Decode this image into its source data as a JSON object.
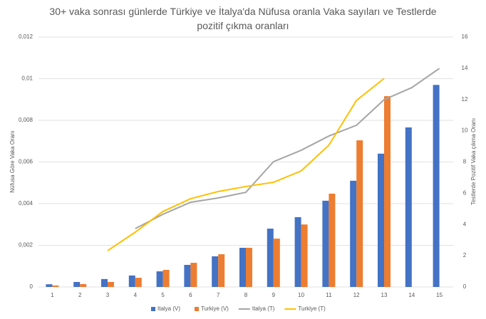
{
  "chart_data": {
    "type": "combo",
    "title": "30+ vaka sonrası günlerde Türkiye ve İtalya'da Nüfusa oranla Vaka sayıları ve Testlerde pozitif çıkma oranları",
    "y_label": "Nüfusa Göre Vaka Oranı",
    "y2_label": "Testlerde Pozitif Vaka çıkma Oranı",
    "categories": [
      "1",
      "2",
      "3",
      "4",
      "5",
      "6",
      "7",
      "8",
      "9",
      "10",
      "11",
      "12",
      "13",
      "14",
      "15"
    ],
    "ylim": [
      0,
      0.012
    ],
    "yticks": [
      0,
      {
        "value": 0.002,
        "label": "0,002"
      },
      {
        "value": 0.004,
        "label": "0,004"
      },
      {
        "value": 0.006,
        "label": "0,006"
      },
      {
        "value": 0.008,
        "label": "0,008"
      },
      {
        "value": 0.01,
        "label": "0,01"
      },
      {
        "value": 0.012,
        "label": "0,012"
      }
    ],
    "y2lim": [
      0,
      16
    ],
    "y2ticks": [
      0,
      2,
      4,
      6,
      8,
      10,
      12,
      14,
      16
    ],
    "grid": true,
    "legend": "bottom",
    "series": [
      {
        "name": "Italya (V)",
        "type": "bar",
        "color": "#4472c4",
        "values": [
          0.00013,
          0.00024,
          0.00038,
          0.00055,
          0.00075,
          0.00106,
          0.00147,
          0.00188,
          0.0028,
          0.00335,
          0.00414,
          0.0051,
          0.0064,
          0.00766,
          0.0097
        ]
      },
      {
        "name": "Turkiye (V)",
        "type": "bar",
        "color": "#ed7d31",
        "values": [
          7e-05,
          0.00014,
          0.00024,
          0.00044,
          0.00082,
          0.00116,
          0.00157,
          0.00188,
          0.00232,
          0.003,
          0.00448,
          0.00704,
          0.00916,
          null,
          null
        ]
      },
      {
        "name": "Italya (T)",
        "type": "line",
        "axis": "y2",
        "color": "#a5a5a5",
        "values": [
          null,
          null,
          null,
          3.74,
          4.65,
          5.42,
          5.7,
          6.06,
          8.02,
          8.75,
          9.66,
          10.35,
          11.99,
          12.76,
          13.99
        ]
      },
      {
        "name": "Turkiye (T)",
        "type": "line",
        "axis": "y2",
        "color": "#ffc000",
        "values": [
          null,
          null,
          2.32,
          3.51,
          4.83,
          5.65,
          6.11,
          6.43,
          6.7,
          7.43,
          9.07,
          11.94,
          13.35,
          null,
          null
        ]
      }
    ]
  }
}
